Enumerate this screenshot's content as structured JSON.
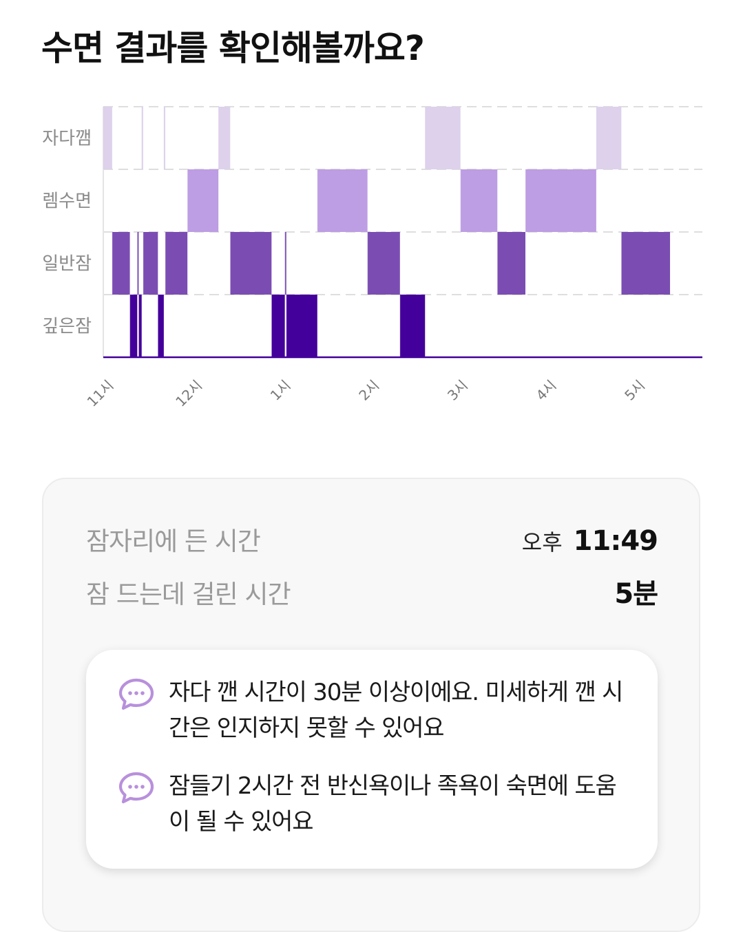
{
  "page": {
    "title": "수면 결과를 확인해볼까요?"
  },
  "chart_data": {
    "type": "hypnogram",
    "stages": [
      "자다깸",
      "렘수면",
      "일반잠",
      "깊은잠"
    ],
    "x_ticks": [
      "11시",
      "12시",
      "1시",
      "2시",
      "3시",
      "4시",
      "5시"
    ],
    "colors": {
      "자다깸": "#ddd1ec",
      "렘수면": "#bd9de3",
      "일반잠": "#7b4db3",
      "깊은잠": "#44009a",
      "grid": "#dedede",
      "axis": "#44009a"
    },
    "note": "",
    "segments": [
      {
        "stage": "자다깸",
        "start": "23:00",
        "end": "23:06"
      },
      {
        "stage": "일반잠",
        "start": "23:06",
        "end": "23:18"
      },
      {
        "stage": "깊은잠",
        "start": "23:18",
        "end": "23:23"
      },
      {
        "stage": "일반잠",
        "start": "23:23",
        "end": "23:24"
      },
      {
        "stage": "깊은잠",
        "start": "23:24",
        "end": "23:26"
      },
      {
        "stage": "자다깸",
        "start": "23:26",
        "end": "23:27"
      },
      {
        "stage": "일반잠",
        "start": "23:27",
        "end": "23:37"
      },
      {
        "stage": "깊은잠",
        "start": "23:37",
        "end": "23:41"
      },
      {
        "stage": "자다깸",
        "start": "23:41",
        "end": "23:42"
      },
      {
        "stage": "일반잠",
        "start": "23:42",
        "end": "23:57"
      },
      {
        "stage": "렘수면",
        "start": "23:57",
        "end": "00:18"
      },
      {
        "stage": "자다깸",
        "start": "00:18",
        "end": "00:26"
      },
      {
        "stage": "일반잠",
        "start": "00:26",
        "end": "00:54"
      },
      {
        "stage": "깊은잠",
        "start": "00:54",
        "end": "01:03"
      },
      {
        "stage": "일반잠",
        "start": "01:03",
        "end": "01:04"
      },
      {
        "stage": "깊은잠",
        "start": "01:04",
        "end": "01:25"
      },
      {
        "stage": "렘수면",
        "start": "01:25",
        "end": "01:59"
      },
      {
        "stage": "일반잠",
        "start": "01:59",
        "end": "02:21"
      },
      {
        "stage": "깊은잠",
        "start": "02:21",
        "end": "02:38"
      },
      {
        "stage": "자다깸",
        "start": "02:38",
        "end": "03:02"
      },
      {
        "stage": "렘수면",
        "start": "03:02",
        "end": "03:27"
      },
      {
        "stage": "일반잠",
        "start": "03:27",
        "end": "03:46"
      },
      {
        "stage": "렘수면",
        "start": "03:46",
        "end": "04:34"
      },
      {
        "stage": "자다깸",
        "start": "04:34",
        "end": "04:51"
      },
      {
        "stage": "일반잠",
        "start": "04:51",
        "end": "05:24"
      }
    ]
  },
  "summary": {
    "bedtime_label": "잠자리에 든 시간",
    "bedtime_prefix": "오후",
    "bedtime_value": "11:49",
    "latency_label": "잠 드는데 걸린 시간",
    "latency_value": "5분"
  },
  "tips": [
    {
      "icon": "chat-bubble-icon",
      "text": "자다 깬 시간이 30분 이상이에요. 미세하게 깬 시간은 인지하지 못할 수 있어요"
    },
    {
      "icon": "chat-bubble-icon",
      "text": "잠들기 2시간 전 반신욕이나 족욕이 숙면에 도움이 될 수 있어요"
    }
  ]
}
